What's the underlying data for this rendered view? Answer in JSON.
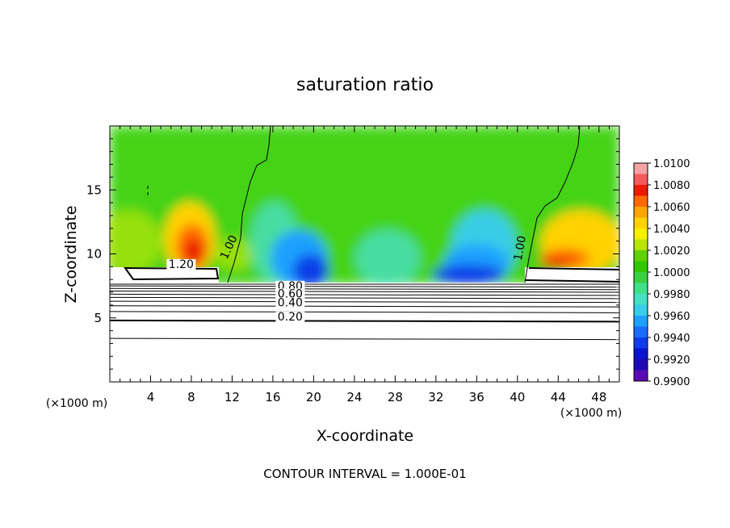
{
  "chart_data": {
    "type": "heatmap",
    "title": "saturation ratio",
    "xlabel": "X-coordinate",
    "ylabel": "Z-coordinate",
    "x_unit": "(×1000 m)",
    "xlim": [
      0,
      50
    ],
    "ylim": [
      0,
      20
    ],
    "x_ticks": [
      4,
      8,
      12,
      16,
      20,
      24,
      28,
      32,
      36,
      40,
      44,
      48
    ],
    "y_ticks": [
      5,
      10,
      15
    ],
    "footer": "CONTOUR INTERVAL = 1.000E-01",
    "colorbar": {
      "levels": [
        "1.0100",
        "1.0080",
        "1.0060",
        "1.0040",
        "1.0020",
        "1.0000",
        "0.9980",
        "0.9960",
        "0.9940",
        "0.9920",
        "0.9900"
      ],
      "colors": [
        "#f4a3a3",
        "#f45a5a",
        "#e81c00",
        "#ff6a00",
        "#ffa500",
        "#ffd200",
        "#f5f000",
        "#b8e600",
        "#5fd200",
        "#2fc800",
        "#38d040",
        "#3ee08a",
        "#46e0c4",
        "#38cde6",
        "#1ea0ff",
        "#1c6cff",
        "#0f3ce8",
        "#0a14c8",
        "#1e0ab4",
        "#5a0ab4"
      ]
    },
    "contour_labels": [
      {
        "text": "1.20",
        "x": 7.0,
        "z": 8.9
      },
      {
        "text": "1.00",
        "x": 12.0,
        "z": 10.4
      },
      {
        "text": "1.00",
        "x": 40.6,
        "z": 10.4
      },
      {
        "text": "0.80",
        "x": 17.7,
        "z": 7.2
      },
      {
        "text": "0.60",
        "x": 17.7,
        "z": 6.6
      },
      {
        "text": "0.40",
        "x": 17.7,
        "z": 5.9
      },
      {
        "text": "0.20",
        "x": 17.7,
        "z": 4.8
      }
    ],
    "contour_lines_z": [
      7.5,
      7.3,
      7.1,
      6.85,
      6.6,
      6.3,
      5.95,
      5.5,
      4.8,
      3.4
    ]
  }
}
